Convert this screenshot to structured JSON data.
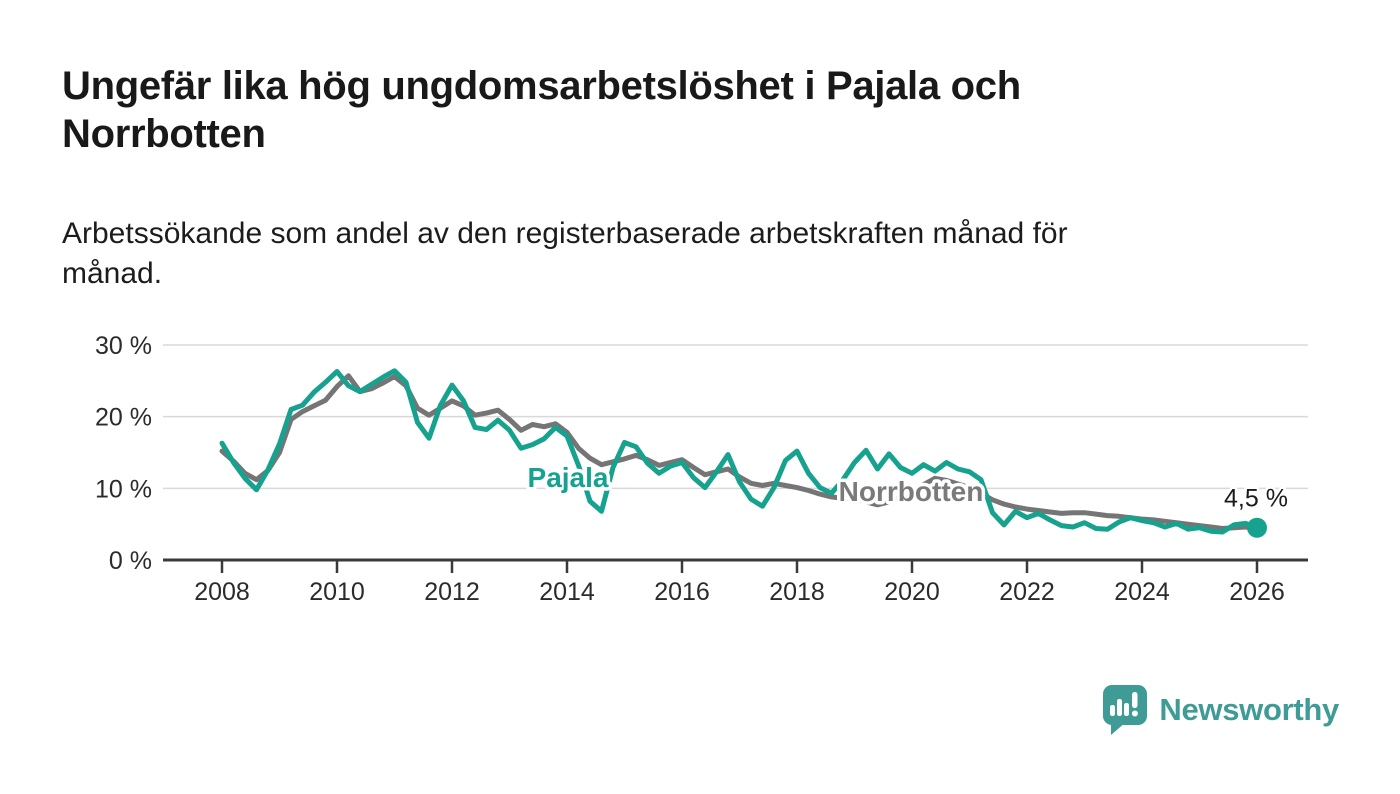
{
  "header": {
    "title": "Ungefär lika hög ungdomsarbetslöshet i Pajala och Norrbotten",
    "title_lines": [
      "Ungefär lika hög ungdomsarbetslöshet i Pajala och",
      "Norrbotten"
    ],
    "subtitle": "Arbetssökande som andel av den registerbaserade arbetskraften månad för månad.",
    "subtitle_lines": [
      "Arbetssökande som andel av den registerbaserade arbetskraften månad för",
      "månad."
    ]
  },
  "logo": {
    "text": "Newsworthy"
  },
  "colors": {
    "pajala": "#16a28f",
    "norrbotten": "#757575",
    "norrbotten_label": "#7a7a7a",
    "brand": "#3f9b95",
    "axis": "#3a3a3a",
    "grid": "#d9d9d9",
    "text": "#2b2b2b"
  },
  "chart_data": {
    "type": "line",
    "title": "Ungefär lika hög ungdomsarbetslöshet i Pajala och Norrbotten",
    "xlabel": "",
    "ylabel": "",
    "ylim": [
      0,
      30
    ],
    "grid": true,
    "legend_position": "inline-labels",
    "yticks": [
      {
        "value": 0,
        "label": "0 %"
      },
      {
        "value": 10,
        "label": "10 %"
      },
      {
        "value": 20,
        "label": "20 %"
      },
      {
        "value": 30,
        "label": "30 %"
      }
    ],
    "xticks": [
      {
        "value": 2008,
        "label": "2008"
      },
      {
        "value": 2010,
        "label": "2010"
      },
      {
        "value": 2012,
        "label": "2012"
      },
      {
        "value": 2014,
        "label": "2014"
      },
      {
        "value": 2016,
        "label": "2016"
      },
      {
        "value": 2018,
        "label": "2018"
      },
      {
        "value": 2020,
        "label": "2020"
      },
      {
        "value": 2022,
        "label": "2022"
      },
      {
        "value": 2024,
        "label": "2024"
      },
      {
        "value": 2026,
        "label": "2026"
      }
    ],
    "x": [
      2008.0,
      2008.2,
      2008.4,
      2008.6,
      2008.8,
      2009.0,
      2009.2,
      2009.4,
      2009.6,
      2009.8,
      2010.0,
      2010.2,
      2010.4,
      2010.6,
      2010.8,
      2011.0,
      2011.2,
      2011.4,
      2011.6,
      2011.8,
      2012.0,
      2012.2,
      2012.4,
      2012.6,
      2012.8,
      2013.0,
      2013.2,
      2013.4,
      2013.6,
      2013.8,
      2014.0,
      2014.2,
      2014.4,
      2014.6,
      2014.8,
      2015.0,
      2015.2,
      2015.4,
      2015.6,
      2015.8,
      2016.0,
      2016.2,
      2016.4,
      2016.6,
      2016.8,
      2017.0,
      2017.2,
      2017.4,
      2017.6,
      2017.8,
      2018.0,
      2018.2,
      2018.4,
      2018.6,
      2018.8,
      2019.0,
      2019.2,
      2019.4,
      2019.6,
      2019.8,
      2020.0,
      2020.2,
      2020.4,
      2020.6,
      2020.8,
      2021.0,
      2021.2,
      2021.4,
      2021.6,
      2021.8,
      2022.0,
      2022.2,
      2022.4,
      2022.6,
      2022.8,
      2023.0,
      2023.2,
      2023.4,
      2023.6,
      2023.8,
      2024.0,
      2024.2,
      2024.4,
      2024.6,
      2024.8,
      2025.0,
      2025.2,
      2025.4,
      2025.6,
      2025.8,
      2026.0
    ],
    "series": [
      {
        "name": "Pajala",
        "color": "#16a28f",
        "values": [
          16.3,
          13.6,
          11.4,
          9.8,
          12.6,
          16.2,
          21.0,
          21.6,
          23.4,
          24.8,
          26.3,
          24.3,
          23.5,
          24.5,
          25.5,
          26.4,
          24.8,
          19.2,
          17.0,
          21.6,
          24.4,
          22.2,
          18.5,
          18.2,
          19.5,
          18.1,
          15.6,
          16.1,
          16.9,
          18.5,
          17.3,
          13.2,
          8.2,
          6.8,
          12.9,
          16.4,
          15.8,
          13.5,
          12.1,
          13.1,
          13.6,
          11.5,
          10.1,
          12.3,
          14.7,
          10.9,
          8.5,
          7.5,
          10.1,
          13.9,
          15.2,
          12.1,
          10.1,
          9.3,
          11.2,
          13.6,
          15.3,
          12.7,
          14.8,
          12.9,
          12.1,
          13.3,
          12.4,
          13.6,
          12.7,
          12.3,
          11.2,
          6.6,
          4.9,
          6.8,
          5.9,
          6.5,
          5.6,
          4.8,
          4.6,
          5.2,
          4.4,
          4.3,
          5.3,
          5.9,
          5.5,
          5.2,
          4.6,
          5.1,
          4.3,
          4.5,
          4.0,
          3.9,
          4.9,
          5.1,
          4.5
        ]
      },
      {
        "name": "Norrbotten",
        "color": "#757575",
        "values": [
          15.2,
          13.8,
          12.1,
          11.2,
          12.5,
          15.0,
          19.6,
          20.7,
          21.5,
          22.3,
          24.2,
          25.7,
          23.5,
          23.9,
          24.7,
          25.6,
          24.3,
          21.2,
          20.2,
          21.2,
          22.2,
          21.5,
          20.2,
          20.5,
          20.9,
          19.6,
          18.1,
          18.9,
          18.6,
          19.0,
          17.8,
          15.6,
          14.2,
          13.3,
          13.7,
          14.1,
          14.6,
          14.0,
          13.2,
          13.6,
          14.0,
          12.9,
          11.9,
          12.3,
          12.7,
          11.6,
          10.7,
          10.4,
          10.7,
          10.4,
          10.1,
          9.7,
          9.2,
          8.8,
          8.6,
          8.6,
          8.1,
          7.7,
          8.1,
          8.8,
          9.4,
          10.5,
          11.4,
          11.1,
          10.6,
          10.1,
          9.3,
          8.4,
          7.8,
          7.4,
          7.1,
          6.9,
          6.7,
          6.5,
          6.6,
          6.6,
          6.4,
          6.2,
          6.1,
          5.9,
          5.7,
          5.6,
          5.4,
          5.2,
          5.0,
          4.8,
          4.6,
          4.4,
          4.5,
          4.6,
          4.4
        ]
      }
    ],
    "end_dot": {
      "series": "Pajala",
      "x": 2026.0,
      "value": 4.5,
      "label": "4,5 %"
    },
    "series_inline_labels": [
      {
        "text": "Pajala",
        "color": "#16a28f"
      },
      {
        "text": "Norrbotten",
        "color": "#7a7a7a"
      }
    ]
  }
}
